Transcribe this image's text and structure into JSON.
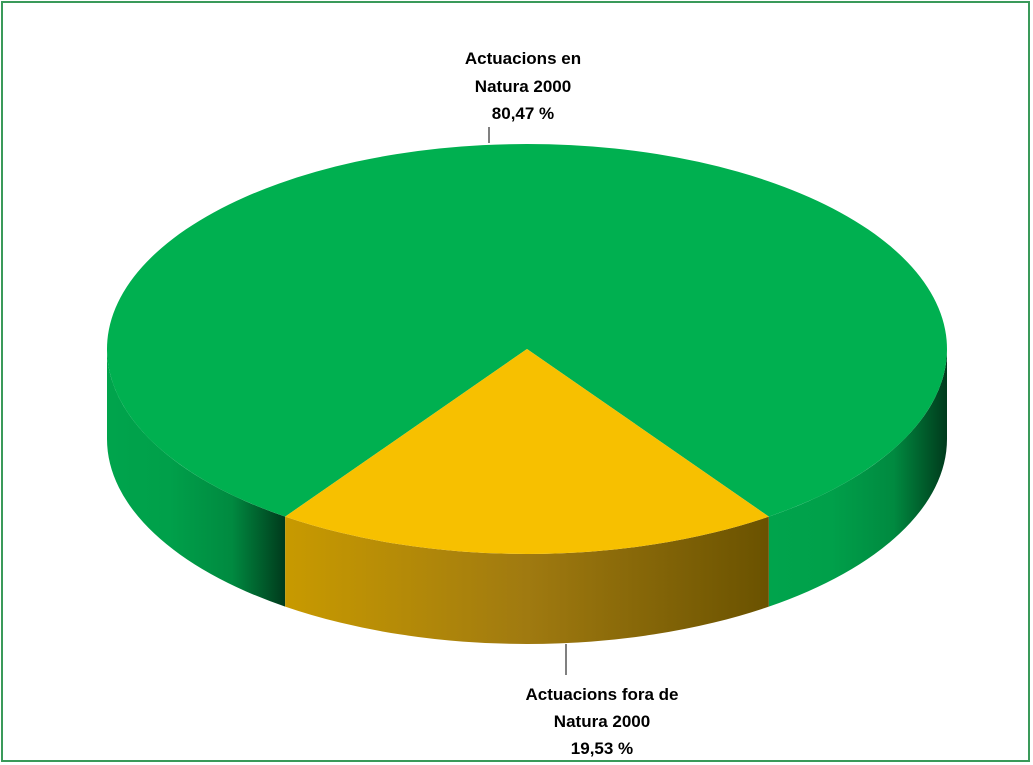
{
  "chart_data": {
    "type": "pie",
    "slices": [
      {
        "label_lines": [
          "Actuacions  en",
          "Natura 2000"
        ],
        "value_text": "80,47 %",
        "value": 80.47,
        "color": "#00b050"
      },
      {
        "label_lines": [
          "Actuacions  fora de",
          "Natura 2000"
        ],
        "value_text": "19,53 %",
        "value": 19.53,
        "color": "#f7c000"
      }
    ],
    "title": "",
    "legend": "none",
    "style": "3d"
  },
  "colors": {
    "border": "#3a9a5a"
  }
}
